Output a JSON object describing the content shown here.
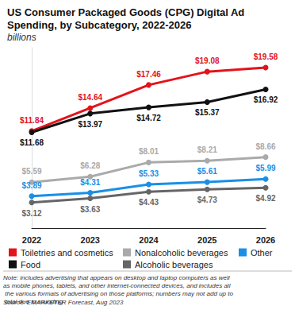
{
  "chart_data": {
    "type": "line",
    "title": "US Consumer Packaged Goods (CPG) Digital Ad Spending, by Subcategory, 2022-2026",
    "subtitle": "billions",
    "categories": [
      "2022",
      "2023",
      "2024",
      "2025",
      "2026"
    ],
    "series": [
      {
        "name": "Toiletries and cosmetics",
        "color": "#e3131b",
        "values": [
          11.84,
          14.64,
          17.46,
          19.08,
          19.58
        ],
        "value_labels": [
          "$11.84",
          "$14.64",
          "$17.46",
          "$19.08",
          "$19.58"
        ]
      },
      {
        "name": "Food",
        "color": "#111111",
        "values": [
          11.68,
          13.97,
          14.72,
          15.37,
          16.92
        ],
        "value_labels": [
          "$11.68",
          "$13.97",
          "$14.72",
          "$15.37",
          "$16.92"
        ]
      },
      {
        "name": "Nonalcoholic beverages",
        "color": "#aaaaaa",
        "values": [
          5.59,
          6.28,
          8.01,
          8.21,
          8.66
        ],
        "value_labels": [
          "$5.59",
          "$6.28",
          "$8.01",
          "$8.21",
          "$8.66"
        ]
      },
      {
        "name": "Alcoholic beverages",
        "color": "#666666",
        "values": [
          3.12,
          3.63,
          4.43,
          4.73,
          4.92
        ],
        "value_labels": [
          "$3.12",
          "$3.63",
          "$4.43",
          "$4.73",
          "$4.92"
        ]
      },
      {
        "name": "Other",
        "color": "#1a8fe6",
        "values": [
          3.89,
          4.31,
          5.33,
          5.61,
          5.99
        ],
        "value_labels": [
          "$3.89",
          "$4.31",
          "$5.33",
          "$5.61",
          "$5.99"
        ]
      }
    ],
    "ylim": [
      0,
      22
    ],
    "yticks": [],
    "grid": false,
    "legend": "bottom",
    "data_labels": true,
    "tick_labels": "x",
    "marker": "circle",
    "note": "Note: includes advertising that appears on desktop and laptop computers as well as mobile phones, tablets, and other internet-connected devices, and includes all the various formats of advertising on those platforms; numbers may not add up to total due to rounding",
    "source": "Source: EMARKETER Forecast, Aug 2023"
  }
}
